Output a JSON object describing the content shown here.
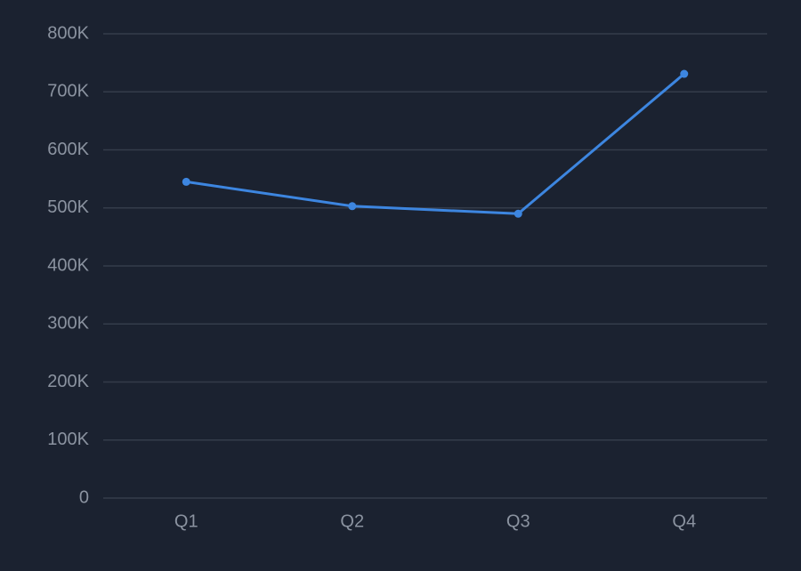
{
  "chart_data": {
    "type": "line",
    "categories": [
      "Q1",
      "Q2",
      "Q3",
      "Q4"
    ],
    "series": [
      {
        "color": "#3d86e0",
        "values": [
          545000,
          503000,
          490000,
          731000
        ]
      }
    ],
    "ylim": [
      0,
      800000
    ],
    "yticks": [
      0,
      {
        "value": 100000,
        "label": "100K"
      },
      {
        "value": 200000,
        "label": "200K"
      },
      {
        "value": 300000,
        "label": "300K"
      },
      {
        "value": 400000,
        "label": "400K"
      },
      {
        "value": 500000,
        "label": "500K"
      },
      {
        "value": 600000,
        "label": "600K"
      },
      {
        "value": 700000,
        "label": "700K"
      },
      {
        "value": 800000,
        "label": "800K"
      }
    ],
    "grid": true
  }
}
